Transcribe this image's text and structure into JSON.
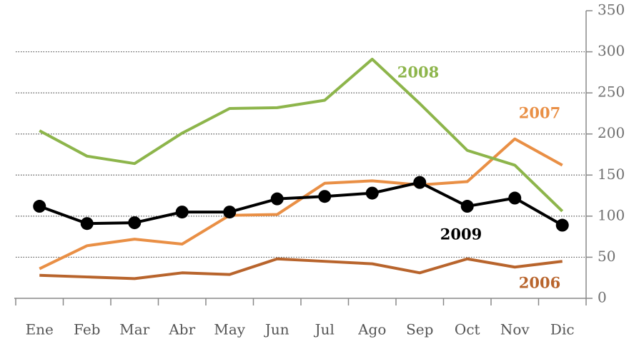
{
  "chart_data": {
    "type": "line",
    "categories": [
      "Ene",
      "Feb",
      "Mar",
      "Abr",
      "May",
      "Jun",
      "Jul",
      "Ago",
      "Sep",
      "Oct",
      "Nov",
      "Dic"
    ],
    "series": [
      {
        "name": "2006",
        "color": "#b8642c",
        "values": [
          28,
          26,
          24,
          31,
          29,
          48,
          45,
          42,
          31,
          48,
          38,
          45
        ]
      },
      {
        "name": "2007",
        "color": "#e98f45",
        "values": [
          36,
          64,
          72,
          66,
          101,
          102,
          140,
          143,
          138,
          142,
          194,
          162
        ]
      },
      {
        "name": "2008",
        "color": "#8db54b",
        "values": [
          204,
          173,
          164,
          201,
          231,
          232,
          241,
          291,
          237,
          180,
          162,
          106
        ]
      },
      {
        "name": "2009",
        "color": "#000000",
        "markers": true,
        "values": [
          112,
          91,
          92,
          105,
          105,
          121,
          124,
          128,
          141,
          112,
          122,
          89
        ]
      }
    ],
    "ylim": [
      0,
      350
    ],
    "yticks": [
      0,
      50,
      100,
      150,
      200,
      250,
      300,
      350
    ],
    "grid": true
  }
}
